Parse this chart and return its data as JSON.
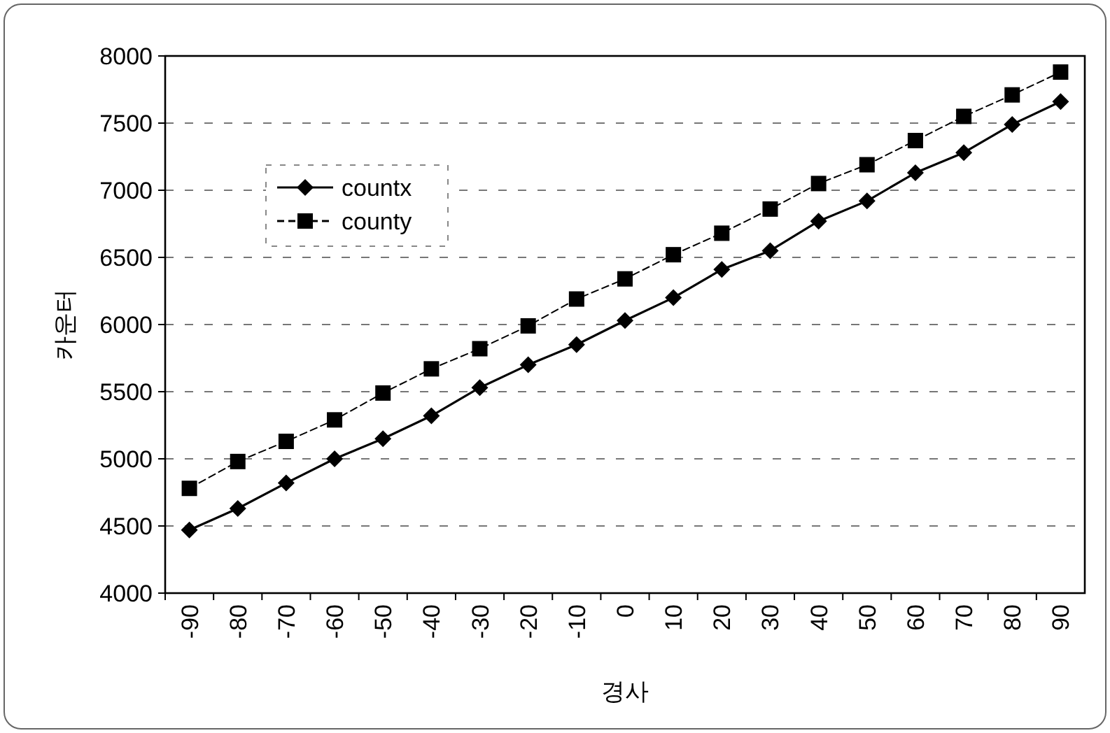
{
  "chart_data": {
    "type": "line",
    "xlabel": "경사",
    "ylabel": "카운터",
    "categories": [
      "-90",
      "-80",
      "-70",
      "-60",
      "-50",
      "-40",
      "-30",
      "-20",
      "-10",
      "0",
      "10",
      "20",
      "30",
      "40",
      "50",
      "60",
      "70",
      "80",
      "90"
    ],
    "series": [
      {
        "name": "countx",
        "color": "#000000",
        "marker": "diamond",
        "line_style": "solid",
        "values": [
          4470,
          4630,
          4820,
          5000,
          5150,
          5320,
          5530,
          5700,
          5850,
          6030,
          6200,
          6410,
          6550,
          6770,
          6920,
          7130,
          7280,
          7490,
          7660
        ]
      },
      {
        "name": "county",
        "color": "#000000",
        "marker": "square",
        "line_style": "dashed",
        "values": [
          4780,
          4980,
          5130,
          5290,
          5490,
          5670,
          5820,
          5990,
          6190,
          6340,
          6520,
          6680,
          6860,
          7050,
          7190,
          7370,
          7550,
          7710,
          7880
        ]
      }
    ],
    "ylim": [
      4000,
      8000
    ],
    "yticks": [
      4000,
      4500,
      5000,
      5500,
      6000,
      6500,
      7000,
      7500,
      8000
    ],
    "grid": "y",
    "legend": "top left"
  }
}
